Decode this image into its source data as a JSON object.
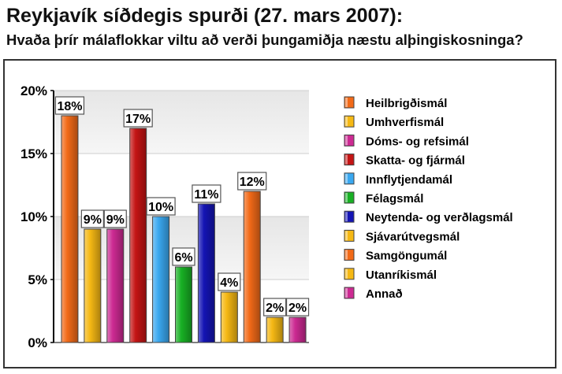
{
  "title": "Reykjavík síðdegis spurði (27. mars 2007):",
  "subtitle": "Hvaða þrír málaflokkar viltu að verði þungamiðja næstu alþingiskosninga?",
  "chart_data": {
    "type": "bar",
    "title": "Reykjavík síðdegis spurði (27. mars 2007):",
    "subtitle": "Hvaða þrír málaflokkar viltu að verði þungamiðja næstu alþingiskosninga?",
    "xlabel": "",
    "ylabel": "",
    "ylim": [
      0,
      20
    ],
    "yticks": [
      0,
      5,
      10,
      15,
      20
    ],
    "ytick_labels": [
      "0%",
      "5%",
      "10%",
      "15%",
      "20%"
    ],
    "grid": "horizontal bands",
    "legend_position": "right",
    "categories": [
      "Heilbrigðismál",
      "Umhverfismál",
      "Dóms- og refsimál",
      "Skatta- og fjármál",
      "Innflytjendamál",
      "Félagsmál",
      "Neytenda- og verðlagsmál",
      "Sjávarútvegsmál",
      "Samgöngumál",
      "Utanríkismál",
      "Annað"
    ],
    "values": [
      18,
      9,
      9,
      17,
      10,
      6,
      11,
      4,
      12,
      2,
      2
    ],
    "value_labels": [
      "18%",
      "9%",
      "9%",
      "17%",
      "10%",
      "6%",
      "11%",
      "4%",
      "12%",
      "2%",
      "2%"
    ],
    "colors": [
      "#f26a18",
      "#f5b814",
      "#cc2a92",
      "#c41414",
      "#3aa8f0",
      "#18b024",
      "#1414b4",
      "#f5b814",
      "#f26a18",
      "#f5b814",
      "#cc2a92"
    ]
  }
}
